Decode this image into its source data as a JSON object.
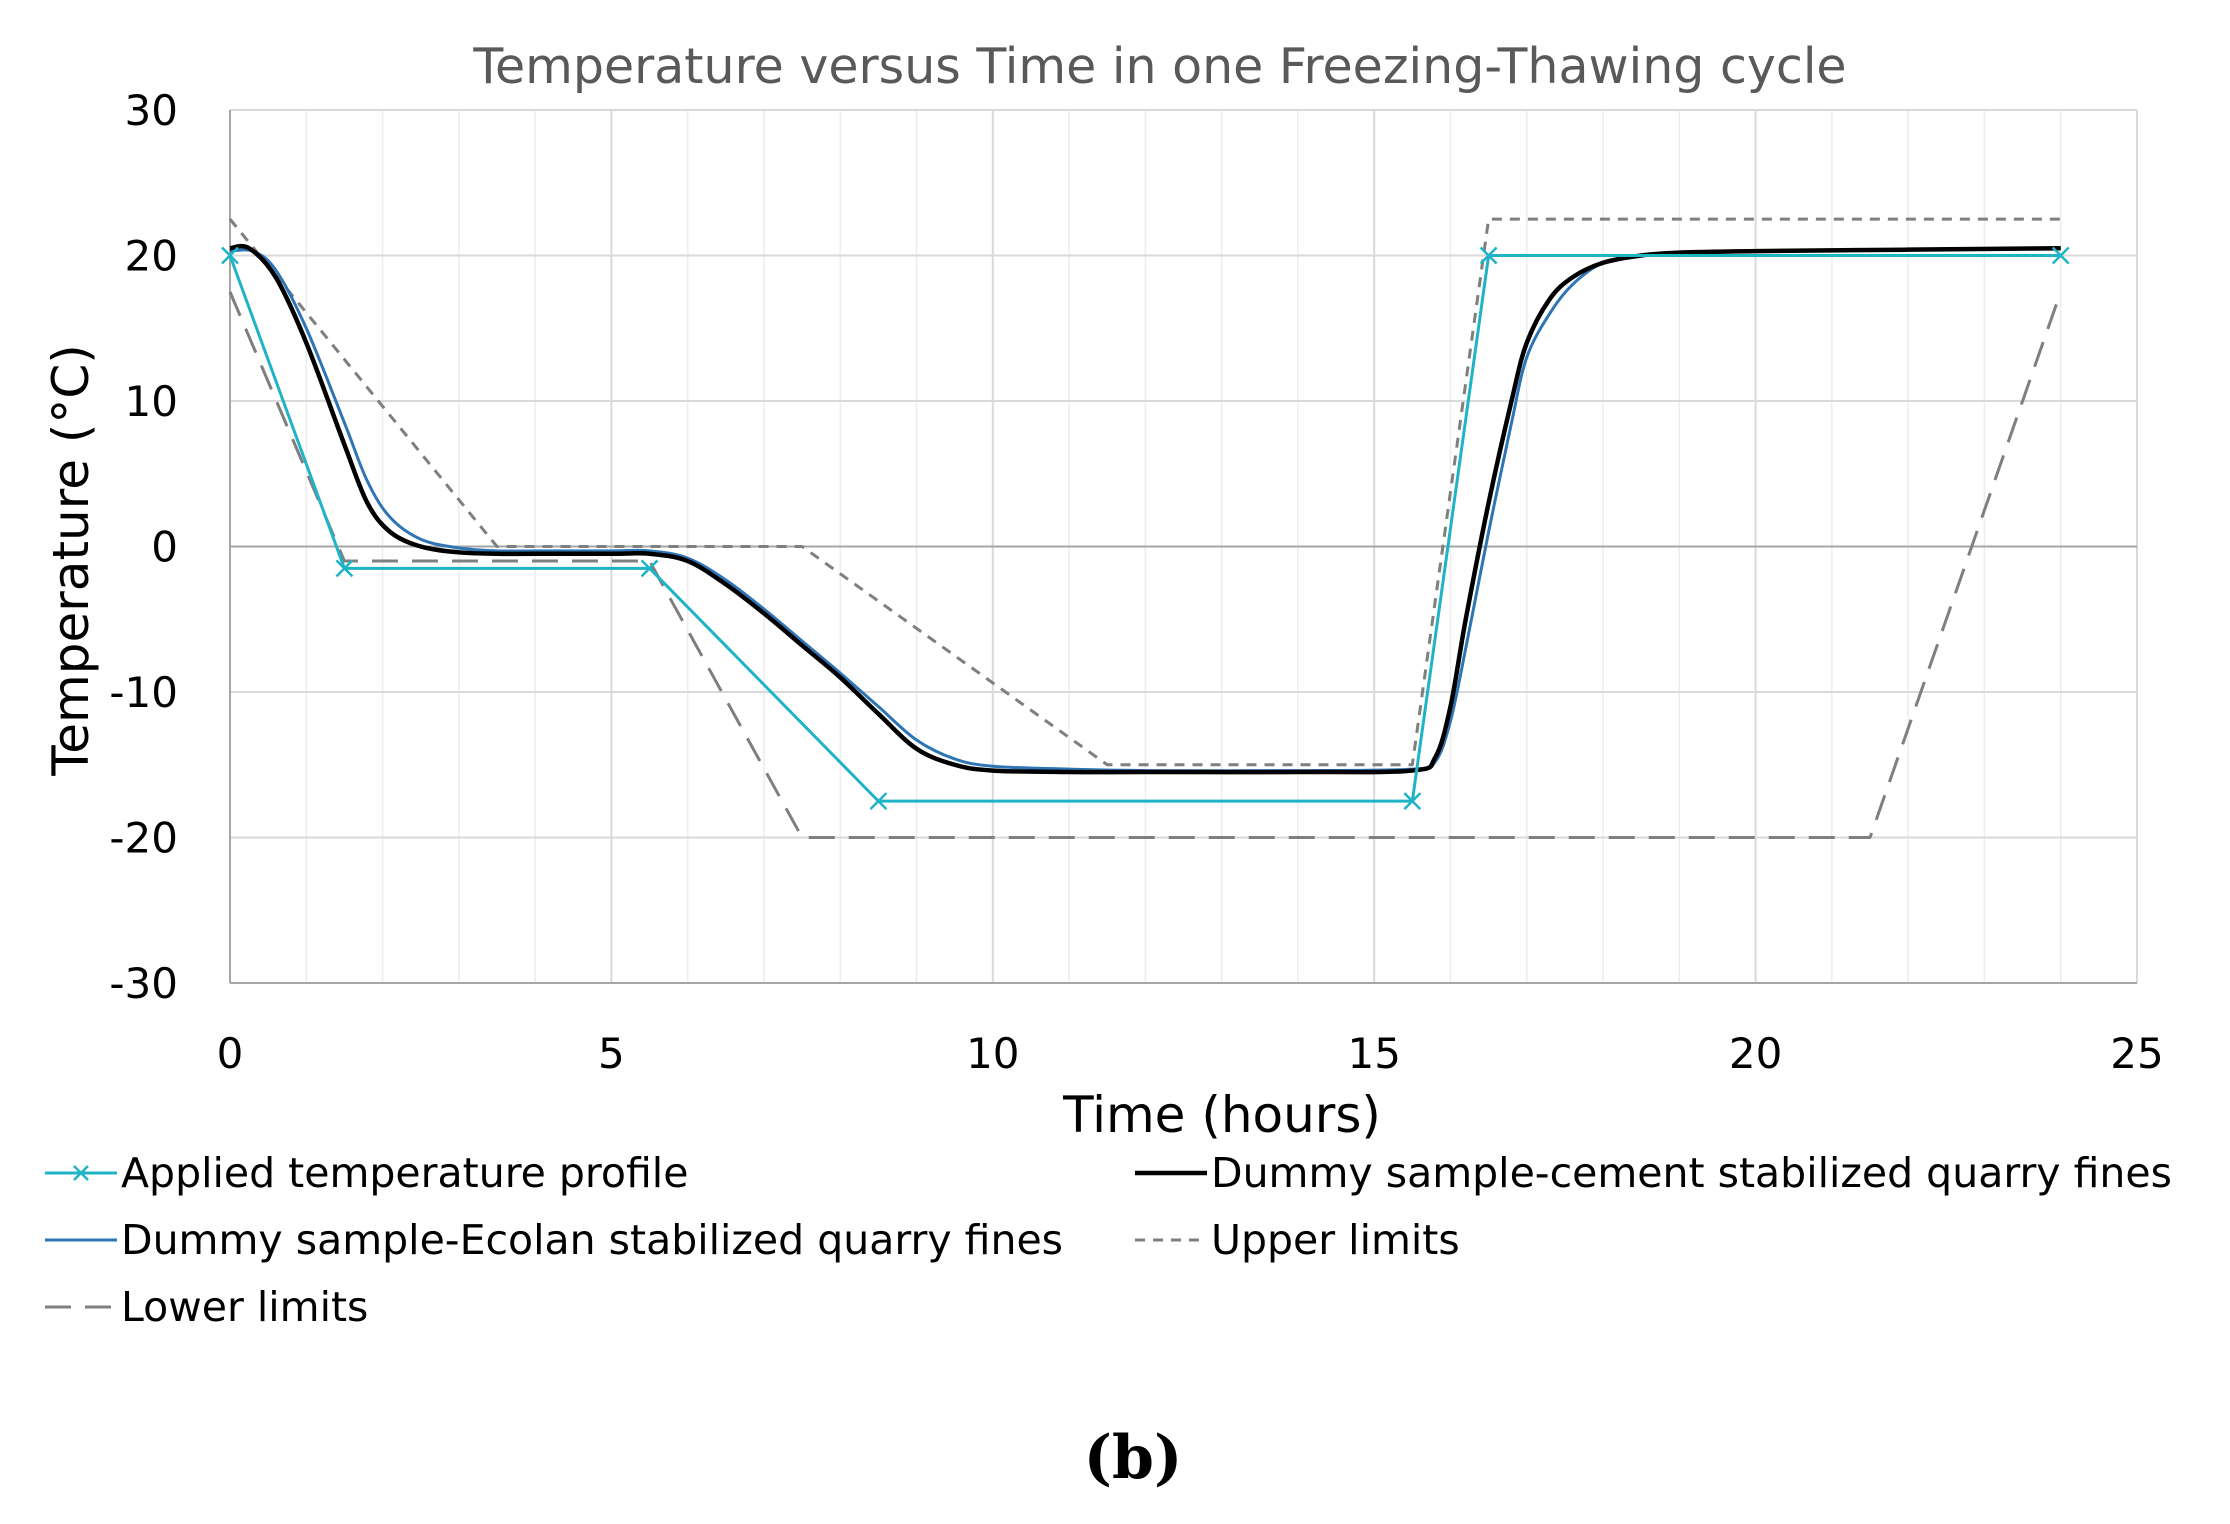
{
  "chart_data": {
    "type": "line",
    "title": "Temperature versus Time in one Freezing-Thawing cycle",
    "xlabel": "Time (hours)",
    "ylabel": "Temperature (°C)",
    "xlim": [
      0,
      25
    ],
    "ylim": [
      -30,
      30
    ],
    "xticks": [
      0,
      5,
      10,
      15,
      20,
      25
    ],
    "yticks": [
      30,
      20,
      10,
      0,
      -10,
      -20,
      -30
    ],
    "grid": true,
    "legend_position": "bottom",
    "series": [
      {
        "name": "Applied temperature profile",
        "color": "#1fb3c8",
        "style": "solid-with-x-markers",
        "x": [
          0,
          1.5,
          5.5,
          8.5,
          15.5,
          16.5,
          24
        ],
        "y": [
          20,
          -1.5,
          -1.5,
          -17.5,
          -17.5,
          20,
          20
        ]
      },
      {
        "name": "Dummy sample-cement stabilized quarry fines",
        "color": "#000000",
        "style": "solid-thick",
        "x": [
          0,
          0.25,
          0.6,
          1.0,
          1.5,
          1.8,
          2.1,
          2.5,
          3.0,
          3.5,
          4.0,
          5.0,
          5.5,
          6.0,
          6.5,
          7.0,
          7.5,
          8.0,
          8.5,
          9.0,
          9.5,
          10.0,
          11.0,
          12.0,
          14.0,
          15.5,
          15.8,
          16.0,
          16.2,
          16.5,
          16.8,
          17.0,
          17.3,
          17.6,
          18.0,
          18.5,
          19.0,
          20.0,
          22.0,
          24.0
        ],
        "y": [
          20.5,
          20.5,
          18.5,
          14.0,
          7.0,
          3.0,
          1.0,
          0.0,
          -0.4,
          -0.5,
          -0.5,
          -0.5,
          -0.5,
          -1.0,
          -2.6,
          -4.6,
          -6.8,
          -9.0,
          -11.5,
          -13.9,
          -15.0,
          -15.4,
          -15.5,
          -15.5,
          -15.5,
          -15.4,
          -14.5,
          -11.0,
          -5.0,
          3.0,
          10.0,
          14.0,
          17.0,
          18.5,
          19.5,
          20.0,
          20.2,
          20.3,
          20.4,
          20.5
        ]
      },
      {
        "name": "Dummy sample-Ecolan stabilized quarry fines",
        "color": "#2e75b6",
        "style": "solid-thin",
        "x": [
          0,
          0.3,
          0.6,
          1.0,
          1.5,
          1.8,
          2.1,
          2.5,
          3.0,
          3.5,
          4.0,
          5.0,
          5.5,
          6.0,
          6.5,
          7.0,
          7.5,
          8.0,
          8.5,
          9.0,
          9.5,
          10.0,
          11.0,
          12.0,
          14.0,
          15.5,
          15.8,
          16.0,
          16.2,
          16.5,
          16.8,
          17.0,
          17.3,
          17.6,
          18.0,
          18.5,
          19.0,
          20.0,
          22.0,
          24.0
        ],
        "y": [
          20.3,
          20.3,
          19.0,
          15.0,
          8.5,
          4.5,
          2.0,
          0.5,
          -0.1,
          -0.3,
          -0.3,
          -0.3,
          -0.3,
          -0.8,
          -2.3,
          -4.3,
          -6.5,
          -8.7,
          -11.0,
          -13.3,
          -14.6,
          -15.1,
          -15.3,
          -15.4,
          -15.4,
          -15.3,
          -14.8,
          -12.0,
          -7.0,
          1.0,
          8.5,
          13.0,
          16.0,
          18.0,
          19.5,
          20.0,
          20.2,
          20.3,
          20.4,
          20.5
        ]
      },
      {
        "name": "Upper limits",
        "color": "#7f7f7f",
        "style": "short-dash",
        "x": [
          0,
          3.5,
          7.5,
          11.5,
          15.5,
          16.5,
          24
        ],
        "y": [
          22.5,
          0,
          0,
          -15,
          -15,
          22.5,
          22.5
        ]
      },
      {
        "name": "Lower limits",
        "color": "#7f7f7f",
        "style": "long-dash",
        "x": [
          0,
          1.5,
          5.5,
          7.5,
          21.5,
          24
        ],
        "y": [
          17.5,
          -1,
          -1,
          -20,
          -20,
          17.5
        ]
      }
    ]
  },
  "caption": "(b)"
}
